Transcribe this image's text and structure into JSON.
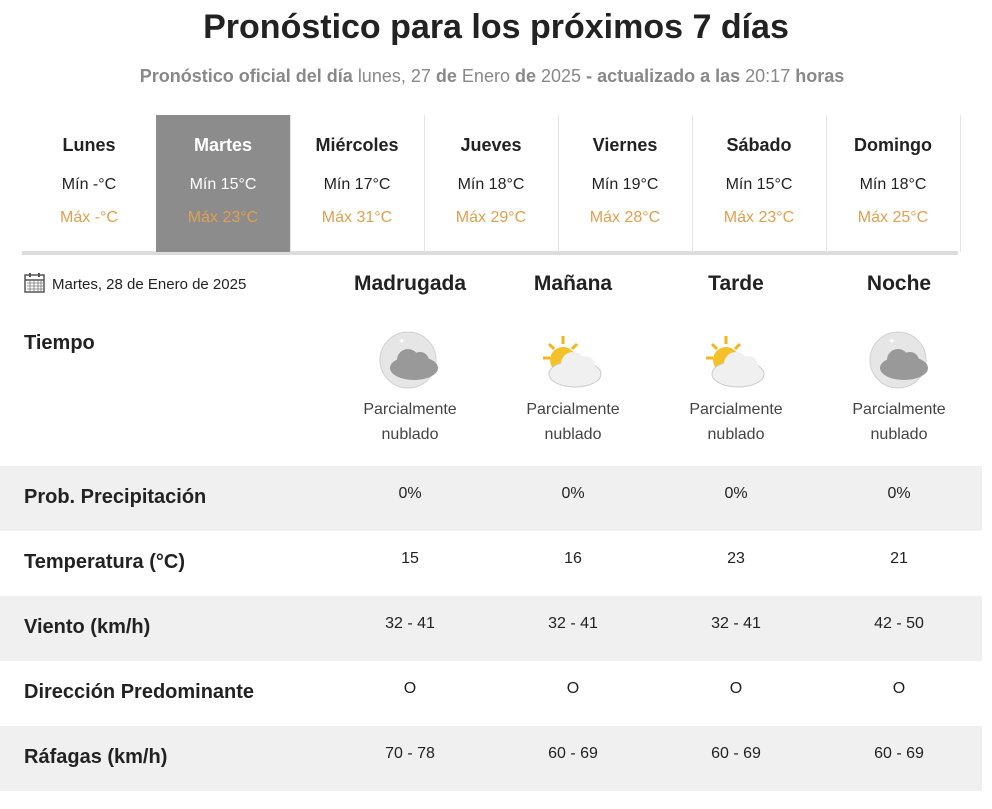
{
  "header": {
    "title": "Pronóstico para los próximos 7 días",
    "subtitle": [
      "Pronóstico oficial del día",
      "lunes, 27",
      "de",
      "Enero",
      "de",
      "2025",
      "- actualizado a las",
      "20:17",
      "horas"
    ]
  },
  "days": [
    {
      "name": "Lunes",
      "min": "Mín -°C",
      "max": "Máx -°C"
    },
    {
      "name": "Martes",
      "min": "Mín 15°C",
      "max": "Máx 23°C"
    },
    {
      "name": "Miércoles",
      "min": "Mín 17°C",
      "max": "Máx 31°C"
    },
    {
      "name": "Jueves",
      "min": "Mín 18°C",
      "max": "Máx 29°C"
    },
    {
      "name": "Viernes",
      "min": "Mín 19°C",
      "max": "Máx 28°C"
    },
    {
      "name": "Sábado",
      "min": "Mín 15°C",
      "max": "Máx 23°C"
    },
    {
      "name": "Domingo",
      "min": "Mín 18°C",
      "max": "Máx 25°C"
    }
  ],
  "selected_day": 1,
  "date": "Martes, 28 de Enero de 2025",
  "periods": [
    "Madrugada",
    "Mañana",
    "Tarde",
    "Noche"
  ],
  "weather": {
    "label": "Tiempo",
    "conditions": [
      [
        "Parcialmente",
        "nublado"
      ],
      [
        "Parcialmente",
        "nublado"
      ],
      [
        "Parcialmente",
        "nublado"
      ],
      [
        "Parcialmente",
        "nublado"
      ]
    ]
  },
  "rows": [
    {
      "label": "Prob. Precipitación",
      "values": [
        "0%",
        "0%",
        "0%",
        "0%"
      ]
    },
    {
      "label": "Temperatura (°C)",
      "values": [
        15,
        16,
        23,
        21
      ]
    },
    {
      "label": "Viento (km/h)",
      "values": [
        "32 - 41",
        "32 - 41",
        "32 - 41",
        "42 - 50"
      ]
    },
    {
      "label": "Dirección Predominante",
      "values": [
        "O",
        "O",
        "O",
        "O"
      ]
    },
    {
      "label": "Ráfagas (km/h)",
      "values": [
        "70 - 78",
        "60 - 69",
        "60 - 69",
        "60 - 69"
      ]
    }
  ]
}
